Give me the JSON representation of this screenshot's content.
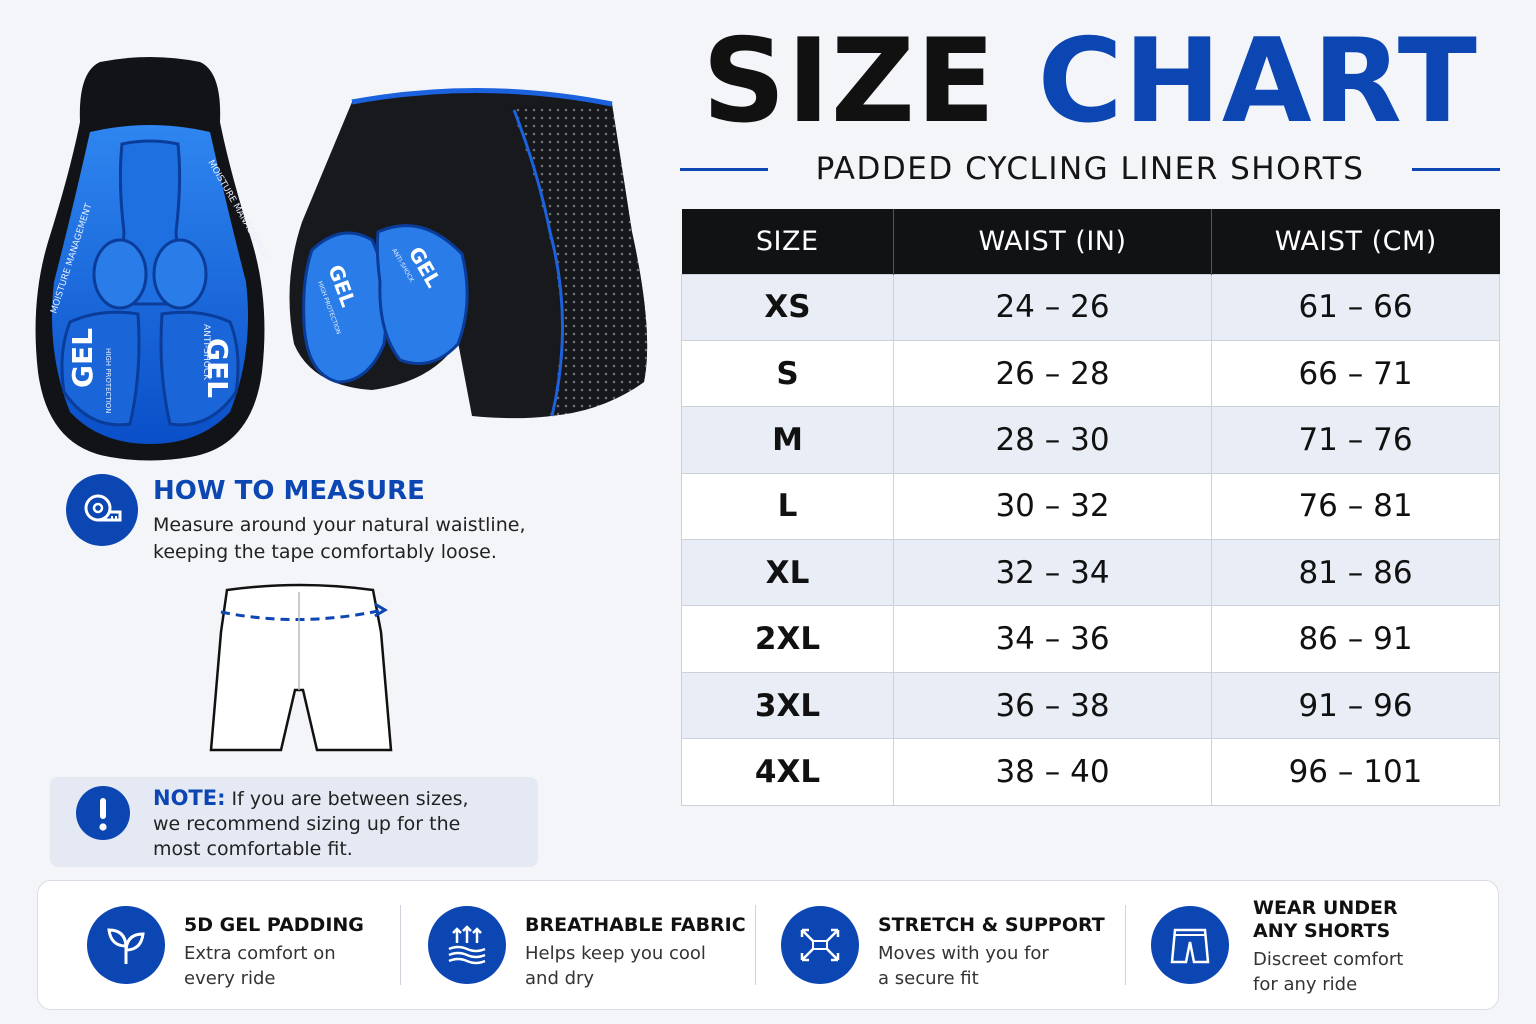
{
  "title": {
    "part1": "SIZE",
    "part2": "CHART"
  },
  "subtitle": "PADDED CYCLING LINER SHORTS",
  "colors": {
    "accent": "#0c46b3",
    "header_bg": "#111214",
    "row_alt": "#e8edf6"
  },
  "product": {
    "pad_labels": [
      "GEL",
      "GEL",
      "MOISTURE MANAGEMENT",
      "MOISTURE MANAGEMENT",
      "HIGH PROTECTION",
      "ANTI-SHOCK"
    ],
    "shorts_labels": [
      "GEL",
      "GEL",
      "HIGH PROTECTION",
      "ANTI-SHOCK"
    ]
  },
  "table": {
    "headers": [
      "SIZE",
      "WAIST (IN)",
      "WAIST (CM)"
    ],
    "rows": [
      [
        "XS",
        "24 – 26",
        "61 – 66"
      ],
      [
        "S",
        "26 – 28",
        "66 – 71"
      ],
      [
        "M",
        "28 – 30",
        "71 – 76"
      ],
      [
        "L",
        "30 – 32",
        "76 – 81"
      ],
      [
        "XL",
        "32 – 34",
        "81 – 86"
      ],
      [
        "2XL",
        "34 – 36",
        "86 – 91"
      ],
      [
        "3XL",
        "36 – 38",
        "91 – 96"
      ],
      [
        "4XL",
        "38 – 40",
        "96 – 101"
      ]
    ]
  },
  "measure": {
    "icon": "tape-measure-icon",
    "title": "HOW TO MEASURE",
    "line1": "Measure around your natural waistline,",
    "line2": "keeping the tape comfortably loose."
  },
  "note": {
    "icon": "exclamation-icon",
    "lead": "NOTE:",
    "line1": " If you are between sizes,",
    "line2": "we recommend sizing up for the",
    "line3": "most comfortable fit."
  },
  "features": [
    {
      "icon": "leaf-sprout-icon",
      "title_lines": [
        "5D GEL PADDING"
      ],
      "desc_lines": [
        "Extra comfort on",
        "every ride"
      ]
    },
    {
      "icon": "breathable-fabric-icon",
      "title_lines": [
        "BREATHABLE FABRIC"
      ],
      "desc_lines": [
        "Helps keep you cool",
        "and dry"
      ]
    },
    {
      "icon": "stretch-arrows-icon",
      "title_lines": [
        "STRETCH & SUPPORT"
      ],
      "desc_lines": [
        "Moves with you for",
        "a secure fit"
      ]
    },
    {
      "icon": "shorts-icon",
      "title_lines": [
        "WEAR UNDER",
        "ANY SHORTS"
      ],
      "desc_lines": [
        "Discreet comfort",
        "for any ride"
      ]
    }
  ]
}
